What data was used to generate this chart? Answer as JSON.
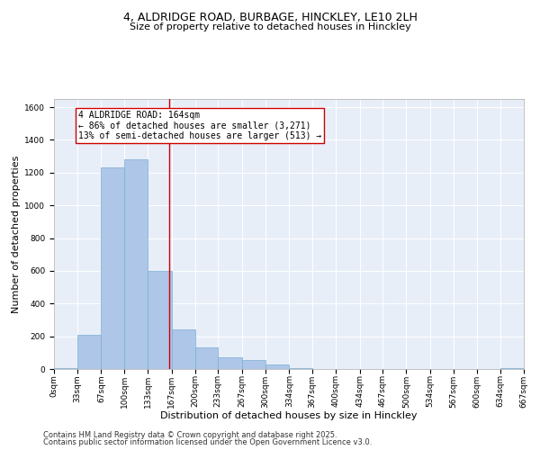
{
  "title1": "4, ALDRIDGE ROAD, BURBAGE, HINCKLEY, LE10 2LH",
  "title2": "Size of property relative to detached houses in Hinckley",
  "xlabel": "Distribution of detached houses by size in Hinckley",
  "ylabel": "Number of detached properties",
  "bin_edges": [
    0,
    33,
    67,
    100,
    133,
    167,
    200,
    233,
    267,
    300,
    334,
    367,
    400,
    434,
    467,
    500,
    534,
    567,
    600,
    634,
    667
  ],
  "bar_values": [
    5,
    210,
    1230,
    1280,
    600,
    240,
    130,
    70,
    55,
    30,
    5,
    2,
    2,
    1,
    1,
    0,
    0,
    0,
    0,
    3
  ],
  "bar_color": "#aec6e8",
  "bar_edge_color": "#7aafd4",
  "vline_x": 164,
  "vline_color": "#cc0000",
  "annotation_text": "4 ALDRIDGE ROAD: 164sqm\n← 86% of detached houses are smaller (3,271)\n13% of semi-detached houses are larger (513) →",
  "annotation_box_color": "#ffffff",
  "annotation_box_edge": "#cc0000",
  "ylim": [
    0,
    1650
  ],
  "yticks": [
    0,
    200,
    400,
    600,
    800,
    1000,
    1200,
    1400,
    1600
  ],
  "bg_color": "#e8eef8",
  "footer1": "Contains HM Land Registry data © Crown copyright and database right 2025.",
  "footer2": "Contains public sector information licensed under the Open Government Licence v3.0.",
  "title1_fontsize": 9,
  "title2_fontsize": 8,
  "tick_label_fontsize": 6.5,
  "axis_label_fontsize": 8,
  "annotation_fontsize": 7,
  "footer_fontsize": 6
}
